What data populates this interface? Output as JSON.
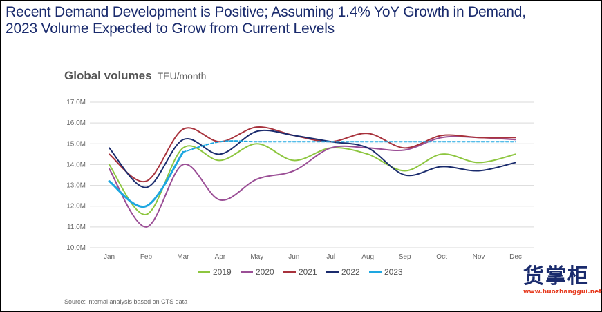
{
  "headline": {
    "line1": "Recent Demand Development is Positive; Assuming 1.4% YoY Growth in Demand,",
    "line2": "2023 Volume Expected to Grow from Current Levels"
  },
  "chart_data": {
    "type": "line",
    "title": "Global volumes",
    "unit": "TEU/month",
    "categories": [
      "Jan",
      "Feb",
      "Mar",
      "Apr",
      "May",
      "Jun",
      "Jul",
      "Aug",
      "Sep",
      "Oct",
      "Nov",
      "Dec"
    ],
    "yticks": [
      "17.0M",
      "16.0M",
      "15.0M",
      "14.0M",
      "13.0M",
      "12.0M",
      "11.0M",
      "10.0M"
    ],
    "ylim": [
      10.0,
      17.0
    ],
    "grid": true,
    "legend_position": "bottom",
    "series": [
      {
        "name": "2019",
        "color": "#8dc63f",
        "dashed": false,
        "values": [
          14.0,
          11.6,
          14.8,
          14.2,
          15.0,
          14.2,
          14.8,
          14.5,
          13.7,
          14.5,
          14.1,
          14.5
        ]
      },
      {
        "name": "2020",
        "color": "#9b4f96",
        "dashed": false,
        "values": [
          13.8,
          11.0,
          14.0,
          12.3,
          13.3,
          13.7,
          14.8,
          14.8,
          14.7,
          15.3,
          15.3,
          15.2
        ]
      },
      {
        "name": "2021",
        "color": "#a8323c",
        "dashed": false,
        "values": [
          14.5,
          13.2,
          15.7,
          15.1,
          15.8,
          15.4,
          15.1,
          15.5,
          14.8,
          15.4,
          15.3,
          15.3
        ]
      },
      {
        "name": "2022",
        "color": "#1a2b6d",
        "dashed": false,
        "values": [
          14.8,
          12.9,
          15.2,
          14.5,
          15.6,
          15.4,
          15.1,
          14.8,
          13.5,
          13.9,
          13.7,
          14.1
        ]
      },
      {
        "name": "2023",
        "color": "#1ea7e1",
        "dashed": false,
        "values": [
          13.2,
          12.0,
          14.6,
          null,
          null,
          null,
          null,
          null,
          null,
          null,
          null,
          null
        ]
      },
      {
        "name": "",
        "color": "#1ea7e1",
        "dashed": true,
        "values": [
          null,
          null,
          14.6,
          15.1,
          15.1,
          15.1,
          15.1,
          15.1,
          15.1,
          15.1,
          15.1,
          15.1
        ]
      }
    ]
  },
  "source": "Source: internal analysis based on CTS data",
  "watermark": {
    "chars": "货掌柜",
    "url": "www.huozhanggui.net"
  }
}
